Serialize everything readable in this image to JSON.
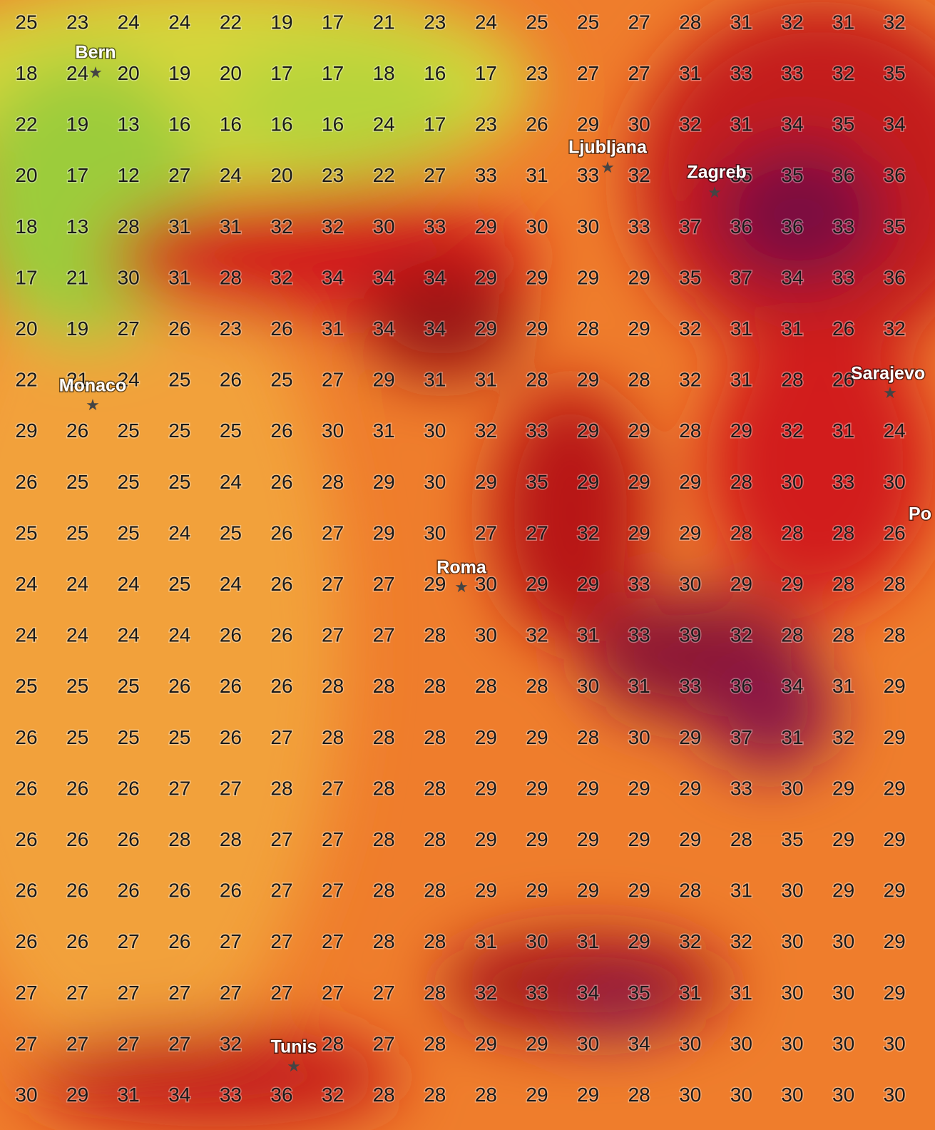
{
  "grid": {
    "rows": [
      [
        25,
        23,
        24,
        24,
        22,
        19,
        17,
        21,
        23,
        24,
        25,
        25,
        27,
        28,
        31,
        32,
        31,
        32
      ],
      [
        18,
        24,
        20,
        19,
        20,
        17,
        17,
        18,
        16,
        17,
        23,
        27,
        27,
        31,
        33,
        33,
        32,
        35
      ],
      [
        22,
        19,
        13,
        16,
        16,
        16,
        16,
        24,
        17,
        23,
        26,
        29,
        30,
        32,
        31,
        34,
        35,
        34
      ],
      [
        20,
        17,
        12,
        27,
        24,
        20,
        23,
        22,
        27,
        33,
        31,
        33,
        32,
        null,
        35,
        35,
        36,
        36
      ],
      [
        18,
        13,
        28,
        31,
        31,
        32,
        32,
        30,
        33,
        29,
        30,
        30,
        33,
        37,
        36,
        36,
        33,
        35
      ],
      [
        17,
        21,
        30,
        31,
        28,
        32,
        34,
        34,
        34,
        29,
        29,
        29,
        29,
        35,
        37,
        34,
        33,
        36
      ],
      [
        20,
        19,
        27,
        26,
        23,
        26,
        31,
        34,
        34,
        29,
        29,
        28,
        29,
        32,
        31,
        31,
        26,
        32
      ],
      [
        22,
        21,
        24,
        25,
        26,
        25,
        27,
        29,
        31,
        31,
        28,
        29,
        28,
        32,
        31,
        28,
        26,
        null
      ],
      [
        29,
        26,
        25,
        25,
        25,
        26,
        30,
        31,
        30,
        32,
        33,
        29,
        29,
        28,
        29,
        32,
        31,
        24
      ],
      [
        26,
        25,
        25,
        25,
        24,
        26,
        28,
        29,
        30,
        29,
        35,
        29,
        29,
        29,
        28,
        30,
        33,
        30
      ],
      [
        25,
        25,
        25,
        24,
        25,
        26,
        27,
        29,
        30,
        27,
        27,
        32,
        29,
        29,
        28,
        28,
        28,
        26
      ],
      [
        24,
        24,
        24,
        25,
        24,
        26,
        27,
        27,
        29,
        30,
        29,
        29,
        33,
        30,
        29,
        29,
        28,
        28
      ],
      [
        24,
        24,
        24,
        24,
        26,
        26,
        27,
        27,
        28,
        30,
        32,
        31,
        33,
        39,
        32,
        28,
        28,
        28
      ],
      [
        25,
        25,
        25,
        26,
        26,
        26,
        28,
        28,
        28,
        28,
        28,
        30,
        31,
        33,
        36,
        34,
        31,
        29
      ],
      [
        26,
        25,
        25,
        25,
        26,
        27,
        28,
        28,
        28,
        29,
        29,
        28,
        30,
        29,
        37,
        31,
        32,
        29
      ],
      [
        26,
        26,
        26,
        27,
        27,
        28,
        27,
        28,
        28,
        29,
        29,
        29,
        29,
        29,
        33,
        30,
        29,
        29
      ],
      [
        26,
        26,
        26,
        28,
        28,
        27,
        27,
        28,
        28,
        29,
        29,
        29,
        29,
        29,
        28,
        35,
        29,
        29
      ],
      [
        26,
        26,
        26,
        26,
        26,
        27,
        27,
        28,
        28,
        29,
        29,
        29,
        29,
        28,
        31,
        30,
        29,
        29
      ],
      [
        26,
        26,
        27,
        26,
        27,
        27,
        27,
        28,
        28,
        31,
        30,
        31,
        29,
        32,
        32,
        30,
        30,
        29
      ],
      [
        27,
        27,
        27,
        27,
        27,
        27,
        27,
        27,
        28,
        32,
        33,
        34,
        35,
        31,
        31,
        30,
        30,
        29
      ],
      [
        27,
        27,
        27,
        27,
        32,
        null,
        28,
        27,
        28,
        29,
        29,
        30,
        34,
        30,
        30,
        30,
        30,
        30
      ],
      [
        30,
        29,
        31,
        34,
        33,
        36,
        32,
        28,
        28,
        28,
        29,
        29,
        28,
        30,
        30,
        30,
        30,
        30
      ]
    ]
  },
  "cities": [
    {
      "name": "Bern"
    },
    {
      "name": "Monaco"
    },
    {
      "name": "Ljubljana"
    },
    {
      "name": "Zagreb"
    },
    {
      "name": "Sarajevo"
    },
    {
      "name": "Roma"
    },
    {
      "name": "Tunis"
    },
    {
      "name": "Po"
    }
  ]
}
